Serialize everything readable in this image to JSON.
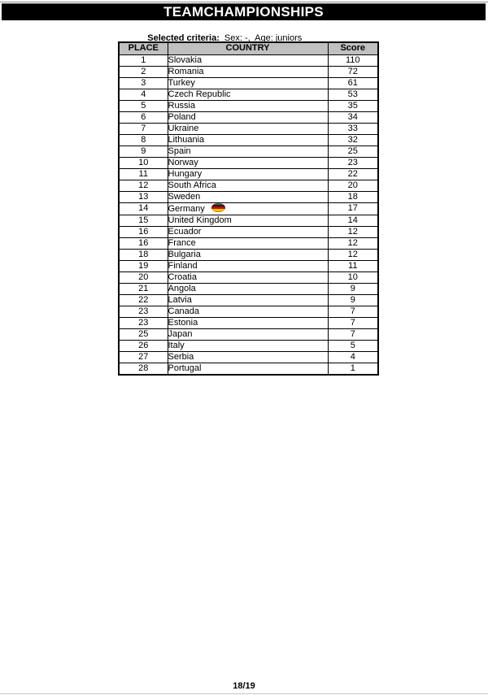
{
  "page": {
    "title": "TEAMCHAMPIONSHIPS",
    "criteria_label": "Selected criteria:",
    "criteria_value": "Sex: -,  Age: juniors",
    "page_number": "18/19"
  },
  "table": {
    "headers": [
      "PLACE",
      "COUNTRY",
      "Score"
    ],
    "rows": [
      {
        "place": "1",
        "country": "Slovakia",
        "score": "110"
      },
      {
        "place": "2",
        "country": "Romania",
        "score": "72"
      },
      {
        "place": "3",
        "country": "Turkey",
        "score": "61"
      },
      {
        "place": "4",
        "country": "Czech Republic",
        "score": "53"
      },
      {
        "place": "5",
        "country": "Russia",
        "score": "35"
      },
      {
        "place": "6",
        "country": "Poland",
        "score": "34"
      },
      {
        "place": "7",
        "country": "Ukraine",
        "score": "33"
      },
      {
        "place": "8",
        "country": "Lithuania",
        "score": "32"
      },
      {
        "place": "9",
        "country": "Spain",
        "score": "25"
      },
      {
        "place": "10",
        "country": "Norway",
        "score": "23"
      },
      {
        "place": "11",
        "country": "Hungary",
        "score": "22"
      },
      {
        "place": "12",
        "country": "South Africa",
        "score": "20"
      },
      {
        "place": "13",
        "country": "Sweden",
        "score": "18"
      },
      {
        "place": "14",
        "country": "Germany",
        "score": "17",
        "flag_icon": "german-flag-icon"
      },
      {
        "place": "15",
        "country": "United Kingdom",
        "score": "14"
      },
      {
        "place": "16",
        "country": "Ecuador",
        "score": "12"
      },
      {
        "place": "16",
        "country": "France",
        "score": "12"
      },
      {
        "place": "18",
        "country": "Bulgaria",
        "score": "12"
      },
      {
        "place": "19",
        "country": "Finland",
        "score": "11"
      },
      {
        "place": "20",
        "country": "Croatia",
        "score": "10"
      },
      {
        "place": "21",
        "country": "Angola",
        "score": "9"
      },
      {
        "place": "22",
        "country": "Latvia",
        "score": "9"
      },
      {
        "place": "23",
        "country": "Canada",
        "score": "7"
      },
      {
        "place": "23",
        "country": "Estonia",
        "score": "7"
      },
      {
        "place": "25",
        "country": "Japan",
        "score": "7"
      },
      {
        "place": "26",
        "country": "Italy",
        "score": "5"
      },
      {
        "place": "27",
        "country": "Serbia",
        "score": "4"
      },
      {
        "place": "28",
        "country": "Portugal",
        "score": "1"
      }
    ]
  },
  "colors": {
    "title_bar_bg": "#000000",
    "title_text": "#ffffff",
    "table_header_bg": "#c0c0c0",
    "border_color": "#000000",
    "page_bg": "#ffffff",
    "flag_stripe_black": "#181818",
    "flag_stripe_red": "#bb0000",
    "flag_stripe_gold": "#ffcc00"
  }
}
